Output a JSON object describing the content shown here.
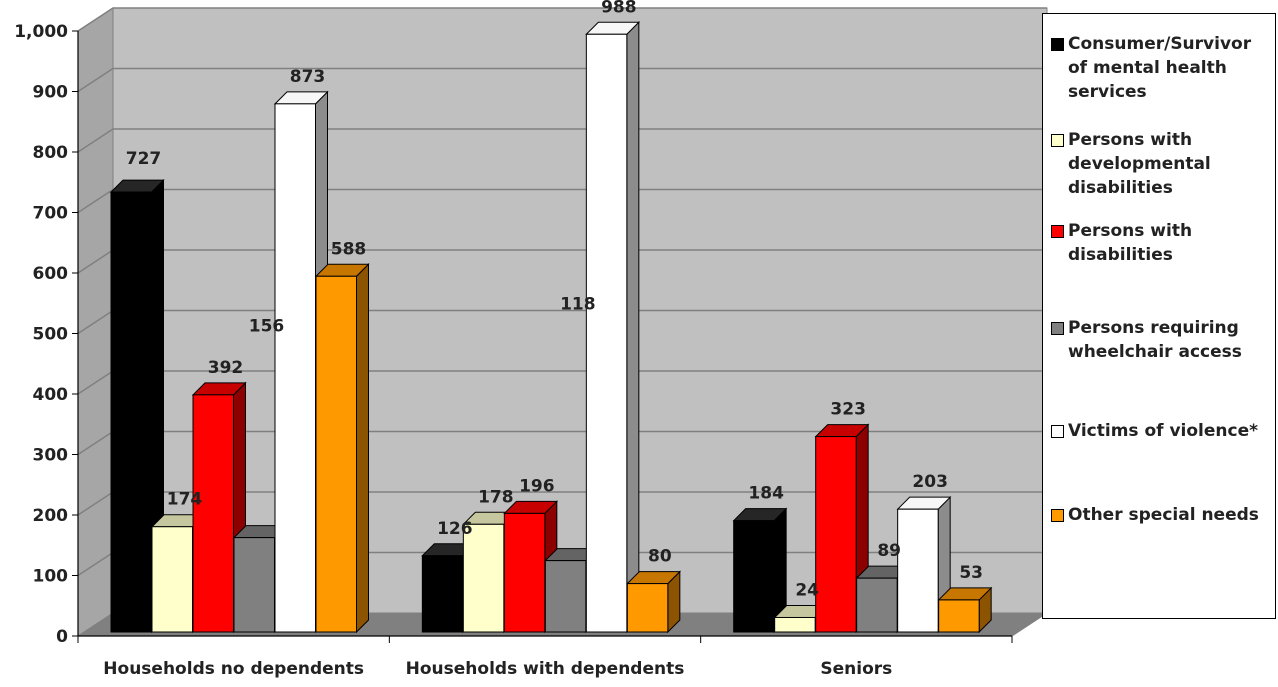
{
  "chart_data": {
    "type": "bar",
    "categories": [
      "Households no dependents",
      "Households with dependents",
      "Seniors"
    ],
    "series": [
      {
        "name": "Consumer/Survivor of mental health services",
        "values": [
          727,
          126,
          184
        ],
        "color": "#000000"
      },
      {
        "name": "Persons with developmental disabilities",
        "values": [
          174,
          178,
          24
        ],
        "color": "#ffffcc"
      },
      {
        "name": "Persons with disabilities",
        "values": [
          392,
          196,
          323
        ],
        "color": "#ff0000"
      },
      {
        "name": "Persons requiring wheelchair access",
        "values": [
          156,
          118,
          89
        ],
        "color": "#808080"
      },
      {
        "name": "Victims of violence*",
        "values": [
          873,
          988,
          203
        ],
        "color": "#ffffff"
      },
      {
        "name": "Other special needs",
        "values": [
          588,
          80,
          53
        ],
        "color": "#ff9900"
      }
    ],
    "ylim": [
      0,
      1000
    ],
    "yticks": [
      "0",
      "100",
      "200",
      "300",
      "400",
      "500",
      "600",
      "700",
      "800",
      "900",
      "1,000"
    ],
    "grid": true,
    "legend_position": "right"
  }
}
